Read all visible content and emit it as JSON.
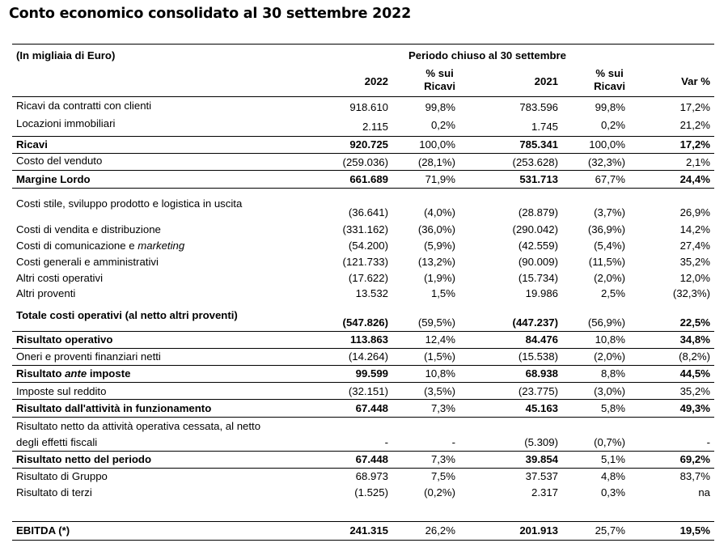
{
  "title": "Conto economico consolidato al 30 settembre 2022",
  "header": {
    "unit": "(In migliaia di Euro)",
    "period": "Periodo chiuso al 30 settembre",
    "col_2022": "2022",
    "col_pct1_a": "% sui",
    "col_pct1_b": "Ricavi",
    "col_2021": "2021",
    "col_pct2_a": "% sui",
    "col_pct2_b": "Ricavi",
    "col_var": "Var %"
  },
  "rows": [
    {
      "label": "Ricavi da contratti con clienti",
      "v2022": "918.610",
      "p2022": "99,8%",
      "v2021": "783.596",
      "p2021": "99,8%",
      "var": "17,2%"
    },
    {
      "label": "Locazioni immobiliari",
      "v2022": "2.115",
      "p2022": "0,2%",
      "v2021": "1.745",
      "p2021": "0,2%",
      "var": "21,2%"
    },
    {
      "label": "Ricavi",
      "v2022": "920.725",
      "p2022": "100,0%",
      "v2021": "785.341",
      "p2021": "100,0%",
      "var": "17,2%"
    },
    {
      "label": "Costo del venduto",
      "v2022": "(259.036)",
      "p2022": "(28,1%)",
      "v2021": "(253.628)",
      "p2021": "(32,3%)",
      "var": "2,1%"
    },
    {
      "label": "Margine Lordo",
      "v2022": "661.689",
      "p2022": "71,9%",
      "v2021": "531.713",
      "p2021": "67,7%",
      "var": "24,4%"
    },
    {
      "label": "Costi stile, sviluppo prodotto e logistica in uscita",
      "v2022": "(36.641)",
      "p2022": "(4,0%)",
      "v2021": "(28.879)",
      "p2021": "(3,7%)",
      "var": "26,9%"
    },
    {
      "label": "Costi di vendita e distribuzione",
      "v2022": "(331.162)",
      "p2022": "(36,0%)",
      "v2021": "(290.042)",
      "p2021": "(36,9%)",
      "var": "14,2%"
    },
    {
      "label_a": "Costi di comunicazione e ",
      "label_b": "marketing",
      "v2022": "(54.200)",
      "p2022": "(5,9%)",
      "v2021": "(42.559)",
      "p2021": "(5,4%)",
      "var": "27,4%"
    },
    {
      "label": "Costi generali e amministrativi",
      "v2022": "(121.733)",
      "p2022": "(13,2%)",
      "v2021": "(90.009)",
      "p2021": "(11,5%)",
      "var": "35,2%"
    },
    {
      "label": "Altri costi operativi",
      "v2022": "(17.622)",
      "p2022": "(1,9%)",
      "v2021": "(15.734)",
      "p2021": "(2,0%)",
      "var": "12,0%"
    },
    {
      "label": "Altri proventi",
      "v2022": "13.532",
      "p2022": "1,5%",
      "v2021": "19.986",
      "p2021": "2,5%",
      "var": "(32,3%)"
    },
    {
      "label": "Totale costi operativi (al netto altri proventi)",
      "v2022": "(547.826)",
      "p2022": "(59,5%)",
      "v2021": "(447.237)",
      "p2021": "(56,9%)",
      "var": "22,5%"
    },
    {
      "label": "Risultato operativo",
      "v2022": "113.863",
      "p2022": "12,4%",
      "v2021": "84.476",
      "p2021": "10,8%",
      "var": "34,8%"
    },
    {
      "label": "Oneri e proventi finanziari netti",
      "v2022": "(14.264)",
      "p2022": "(1,5%)",
      "v2021": "(15.538)",
      "p2021": "(2,0%)",
      "var": "(8,2%)"
    },
    {
      "label_a": "Risultato ",
      "label_b": "ante",
      "label_c": " imposte",
      "v2022": "99.599",
      "p2022": "10,8%",
      "v2021": "68.938",
      "p2021": "8,8%",
      "var": "44,5%"
    },
    {
      "label": "Imposte sul reddito",
      "v2022": "(32.151)",
      "p2022": "(3,5%)",
      "v2021": "(23.775)",
      "p2021": "(3,0%)",
      "var": "35,2%"
    },
    {
      "label": "Risultato dall'attività in funzionamento",
      "v2022": "67.448",
      "p2022": "7,3%",
      "v2021": "45.163",
      "p2021": "5,8%",
      "var": "49,3%"
    },
    {
      "label_a": "Risultato netto da attività operativa cessata, al netto",
      "label_b": "degli effetti fiscali",
      "v2022": "-",
      "p2022": "-",
      "v2021": "(5.309)",
      "p2021": "(0,7%)",
      "var": "-"
    },
    {
      "label": "Risultato netto del periodo",
      "v2022": "67.448",
      "p2022": "7,3%",
      "v2021": "39.854",
      "p2021": "5,1%",
      "var": "69,2%"
    },
    {
      "label": "Risultato di Gruppo",
      "v2022": "68.973",
      "p2022": "7,5%",
      "v2021": "37.537",
      "p2021": "4,8%",
      "var": "83,7%"
    },
    {
      "label": "Risultato di terzi",
      "v2022": "(1.525)",
      "p2022": "(0,2%)",
      "v2021": "2.317",
      "p2021": "0,3%",
      "var": "na"
    },
    {
      "label": "EBITDA (*)",
      "v2022": "241.315",
      "p2022": "26,2%",
      "v2021": "201.913",
      "p2021": "25,7%",
      "var": "19,5%"
    }
  ]
}
